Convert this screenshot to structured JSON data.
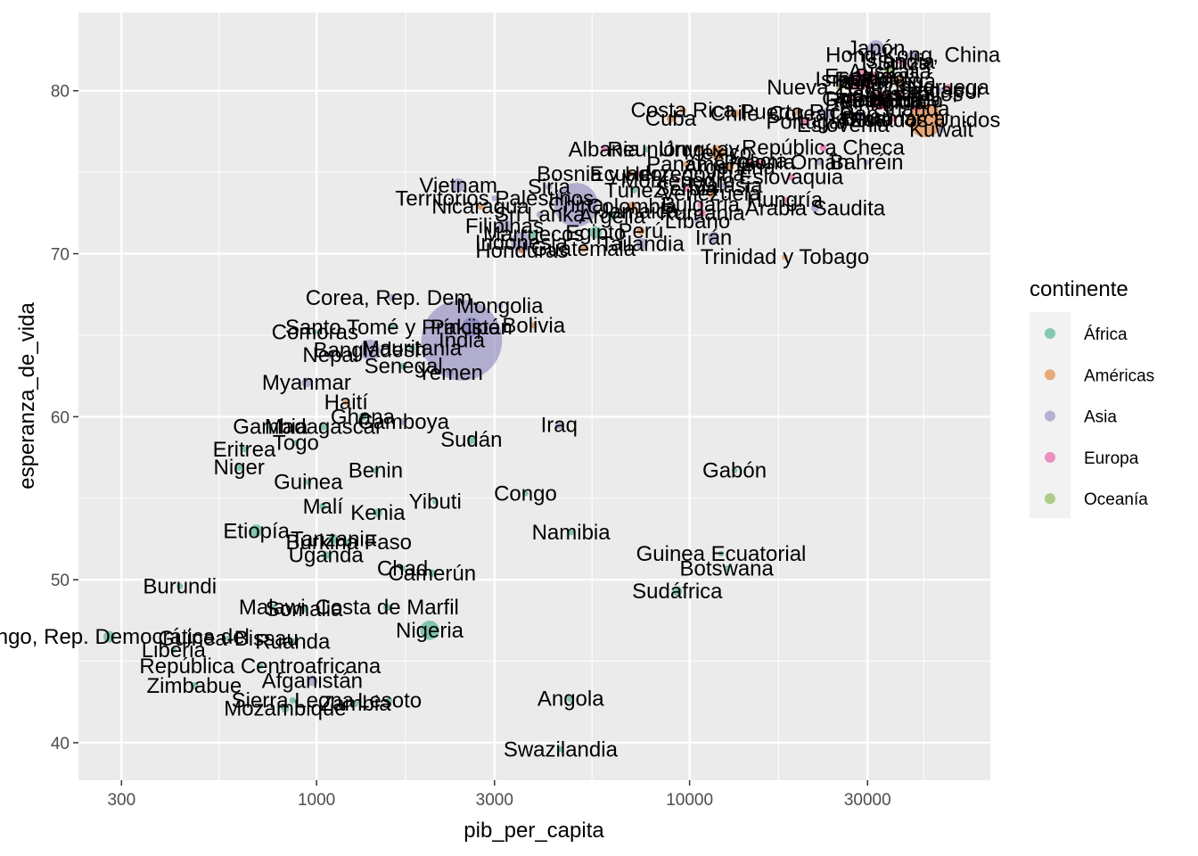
{
  "chart_data": {
    "type": "scatter",
    "xlabel": "pib_per_capita",
    "ylabel": "esperanza_de_vida",
    "x_scale": "log10",
    "xlim": [
      230,
      64000
    ],
    "ylim": [
      37.7,
      84.8
    ],
    "x_ticks": [
      300,
      1000,
      3000,
      10000,
      30000
    ],
    "x_tick_labels": [
      "300",
      "1000",
      "3000",
      "10000",
      "30000"
    ],
    "y_ticks": [
      40,
      50,
      60,
      70,
      80
    ],
    "y_tick_labels": [
      "40",
      "50",
      "60",
      "70",
      "80"
    ],
    "grid": true,
    "background": "#ebebeb",
    "legend": {
      "title": "continente",
      "placement": "right",
      "entries": [
        {
          "label": "África",
          "color": "#1b9e77"
        },
        {
          "label": "Américas",
          "color": "#d95f02"
        },
        {
          "label": "Asia",
          "color": "#7570b3"
        },
        {
          "label": "Europa",
          "color": "#e7298a"
        },
        {
          "label": "Oceanía",
          "color": "#66a61e"
        }
      ]
    },
    "points": [
      {
        "label": "Japón",
        "x": 31600,
        "y": 82.6,
        "continent": "Asia",
        "size": 1.6
      },
      {
        "label": "Hong Kong, China",
        "x": 39700,
        "y": 82.2,
        "continent": "Asia",
        "size": 1.0
      },
      {
        "label": "Islandia",
        "x": 36200,
        "y": 81.8,
        "continent": "Europa",
        "size": 0.3
      },
      {
        "label": "Suiza",
        "x": 37500,
        "y": 81.7,
        "continent": "Europa",
        "size": 0.6
      },
      {
        "label": "Australia",
        "x": 34400,
        "y": 81.2,
        "continent": "Oceanía",
        "size": 1.0
      },
      {
        "label": "España",
        "x": 28800,
        "y": 80.9,
        "continent": "Europa",
        "size": 1.4
      },
      {
        "label": "Suecia",
        "x": 33900,
        "y": 80.9,
        "continent": "Europa",
        "size": 0.8
      },
      {
        "label": "Israel",
        "x": 25500,
        "y": 80.7,
        "continent": "Asia",
        "size": 0.6
      },
      {
        "label": "Francia",
        "x": 30500,
        "y": 80.7,
        "continent": "Europa",
        "size": 1.6
      },
      {
        "label": "Canadá",
        "x": 36300,
        "y": 80.6,
        "continent": "Américas",
        "size": 1.2
      },
      {
        "label": "Italia",
        "x": 28600,
        "y": 80.5,
        "continent": "Europa",
        "size": 1.6
      },
      {
        "label": "Noruega",
        "x": 49400,
        "y": 80.2,
        "continent": "Europa",
        "size": 0.6
      },
      {
        "label": "Nueva Zelanda",
        "x": 25200,
        "y": 80.2,
        "continent": "Oceanía",
        "size": 0.5
      },
      {
        "label": "Austria",
        "x": 36100,
        "y": 79.8,
        "continent": "Europa",
        "size": 0.8
      },
      {
        "label": "Países Bajos",
        "x": 36800,
        "y": 79.8,
        "continent": "Europa",
        "size": 0.9
      },
      {
        "label": "Grecia",
        "x": 27500,
        "y": 79.5,
        "continent": "Europa",
        "size": 0.8
      },
      {
        "label": "Bélgica",
        "x": 33700,
        "y": 79.4,
        "continent": "Europa",
        "size": 0.8
      },
      {
        "label": "Reino Unido",
        "x": 33200,
        "y": 79.4,
        "continent": "Europa",
        "size": 1.6
      },
      {
        "label": "Alemania",
        "x": 32200,
        "y": 79.4,
        "continent": "Europa",
        "size": 1.8
      },
      {
        "label": "Finlandia",
        "x": 33200,
        "y": 79.3,
        "continent": "Europa",
        "size": 0.6
      },
      {
        "label": "Irlanda",
        "x": 40700,
        "y": 78.9,
        "continent": "Europa",
        "size": 0.5
      },
      {
        "label": "Singapur",
        "x": 47100,
        "y": 80.0,
        "continent": "Asia",
        "size": 0.5
      },
      {
        "label": "Costa Rica",
        "x": 9600,
        "y": 78.8,
        "continent": "Américas",
        "size": 0.5
      },
      {
        "label": "Puerto Rico",
        "x": 19300,
        "y": 78.7,
        "continent": "Américas",
        "size": 0.5
      },
      {
        "label": "Chile",
        "x": 13200,
        "y": 78.6,
        "continent": "Américas",
        "size": 0.9
      },
      {
        "label": "Cuba",
        "x": 8900,
        "y": 78.3,
        "continent": "Américas",
        "size": 0.8
      },
      {
        "label": "Eslovenia",
        "x": 25800,
        "y": 77.9,
        "continent": "Europa",
        "size": 0.4
      },
      {
        "label": "Dinamarca",
        "x": 35300,
        "y": 78.3,
        "continent": "Europa",
        "size": 0.6
      },
      {
        "label": "Portugal",
        "x": 20500,
        "y": 78.1,
        "continent": "Europa",
        "size": 0.8
      },
      {
        "label": "Estados Unidos",
        "x": 42900,
        "y": 78.2,
        "continent": "Américas",
        "size": 2.6
      },
      {
        "label": "Corea, Rep.",
        "x": 23300,
        "y": 78.6,
        "continent": "Asia",
        "size": 1.1
      },
      {
        "label": "Taiwán",
        "x": 28700,
        "y": 78.4,
        "continent": "Asia",
        "size": 0.8
      },
      {
        "label": "Kuwait",
        "x": 47300,
        "y": 77.6,
        "continent": "Asia",
        "size": 0.5
      },
      {
        "label": "Albania",
        "x": 5900,
        "y": 76.4,
        "continent": "Europa",
        "size": 0.5
      },
      {
        "label": "Reunión",
        "x": 7700,
        "y": 76.4,
        "continent": "África",
        "size": 0.4
      },
      {
        "label": "México",
        "x": 11900,
        "y": 76.2,
        "continent": "Américas",
        "size": 1.5
      },
      {
        "label": "República Checa",
        "x": 22800,
        "y": 76.5,
        "continent": "Europa",
        "size": 0.6
      },
      {
        "label": "Panamá",
        "x": 9800,
        "y": 75.5,
        "continent": "Américas",
        "size": 0.4
      },
      {
        "label": "Argentina",
        "x": 12800,
        "y": 75.3,
        "continent": "Américas",
        "size": 0.9
      },
      {
        "label": "Croacia",
        "x": 14600,
        "y": 75.7,
        "continent": "Europa",
        "size": 0.4
      },
      {
        "label": "Bahréin",
        "x": 29800,
        "y": 75.6,
        "continent": "Asia",
        "size": 0.4
      },
      {
        "label": "Uruguay",
        "x": 10600,
        "y": 76.4,
        "continent": "Américas",
        "size": 0.4
      },
      {
        "label": "Bosnia y Herzegovina",
        "x": 7400,
        "y": 74.9,
        "continent": "Europa",
        "size": 0.5
      },
      {
        "label": "Ecuador",
        "x": 6900,
        "y": 74.9,
        "continent": "Américas",
        "size": 0.6
      },
      {
        "label": "Siria",
        "x": 4200,
        "y": 74.1,
        "continent": "Asia",
        "size": 0.6
      },
      {
        "label": "Vietnam",
        "x": 2400,
        "y": 74.2,
        "continent": "Asia",
        "size": 1.4
      },
      {
        "label": "Montenegro",
        "x": 9300,
        "y": 74.5,
        "continent": "Europa",
        "size": 0.3
      },
      {
        "label": "Eslovaquia",
        "x": 18700,
        "y": 74.7,
        "continent": "Europa",
        "size": 0.5
      },
      {
        "label": "Malasia",
        "x": 12500,
        "y": 74.2,
        "continent": "Asia",
        "size": 0.8
      },
      {
        "label": "China",
        "x": 4960,
        "y": 73.0,
        "continent": "Asia",
        "size": 3.0
      },
      {
        "label": "Túnez",
        "x": 7100,
        "y": 73.9,
        "continent": "África",
        "size": 0.5
      },
      {
        "label": "Serbia",
        "x": 9800,
        "y": 74.0,
        "continent": "Europa",
        "size": 0.5
      },
      {
        "label": "Territorios Palestinos",
        "x": 3000,
        "y": 73.4,
        "continent": "Asia",
        "size": 0.4
      },
      {
        "label": "Nicaragua",
        "x": 2750,
        "y": 72.9,
        "continent": "Américas",
        "size": 0.5
      },
      {
        "label": "Omán",
        "x": 22300,
        "y": 75.6,
        "continent": "Asia",
        "size": 0.4
      },
      {
        "label": "Hungría",
        "x": 18000,
        "y": 73.3,
        "continent": "Europa",
        "size": 0.5
      },
      {
        "label": "Arabia Saudita",
        "x": 21700,
        "y": 72.8,
        "continent": "Asia",
        "size": 0.8
      },
      {
        "label": "Argelia",
        "x": 6200,
        "y": 72.3,
        "continent": "África",
        "size": 0.9
      },
      {
        "label": "Jamaica",
        "x": 7300,
        "y": 72.6,
        "continent": "Américas",
        "size": 0.4
      },
      {
        "label": "Líbano",
        "x": 10500,
        "y": 72.0,
        "continent": "Asia",
        "size": 0.4
      },
      {
        "label": "Bulgaria",
        "x": 10700,
        "y": 73.0,
        "continent": "Europa",
        "size": 0.5
      },
      {
        "label": "Polonia",
        "x": 15400,
        "y": 75.6,
        "continent": "Europa",
        "size": 0.9
      },
      {
        "label": "Venezuela",
        "x": 11400,
        "y": 73.7,
        "continent": "Américas",
        "size": 0.8
      },
      {
        "label": "Colombia",
        "x": 7000,
        "y": 72.9,
        "continent": "Américas",
        "size": 1.0
      },
      {
        "label": "Perú",
        "x": 7400,
        "y": 71.4,
        "continent": "Américas",
        "size": 0.8
      },
      {
        "label": "Egipto",
        "x": 5600,
        "y": 71.3,
        "continent": "África",
        "size": 1.3
      },
      {
        "label": "Sri Lanka",
        "x": 3970,
        "y": 72.4,
        "continent": "Asia",
        "size": 0.6
      },
      {
        "label": "Marruecos",
        "x": 3820,
        "y": 71.2,
        "continent": "África",
        "size": 0.9
      },
      {
        "label": "Filipinas",
        "x": 3190,
        "y": 71.7,
        "continent": "Asia",
        "size": 1.4
      },
      {
        "label": "Irán",
        "x": 11600,
        "y": 71.0,
        "continent": "Asia",
        "size": 1.2
      },
      {
        "label": "Indonesia",
        "x": 3540,
        "y": 70.7,
        "continent": "Asia",
        "size": 1.9
      },
      {
        "label": "Tailandia",
        "x": 7458,
        "y": 70.6,
        "continent": "Asia",
        "size": 1.2
      },
      {
        "label": "Rumania",
        "x": 10800,
        "y": 72.5,
        "continent": "Europa",
        "size": 0.7
      },
      {
        "label": "Honduras",
        "x": 3550,
        "y": 70.2,
        "continent": "Américas",
        "size": 0.5
      },
      {
        "label": "Guatemala",
        "x": 5190,
        "y": 70.3,
        "continent": "Américas",
        "size": 0.6
      },
      {
        "label": "Trinidad y Tobago",
        "x": 18000,
        "y": 69.8,
        "continent": "Américas",
        "size": 0.3
      },
      {
        "label": "Corea, Rep. Dem.",
        "x": 1590,
        "y": 67.3,
        "continent": "Asia",
        "size": 0.7
      },
      {
        "label": "Mongolia",
        "x": 3100,
        "y": 66.8,
        "continent": "Asia",
        "size": 0.4
      },
      {
        "label": "Bolivia",
        "x": 3820,
        "y": 65.6,
        "continent": "Américas",
        "size": 0.5
      },
      {
        "label": "Pakistán",
        "x": 2600,
        "y": 65.5,
        "continent": "Asia",
        "size": 1.8
      },
      {
        "label": "Santo Tomé y Príncipe",
        "x": 1600,
        "y": 65.5,
        "continent": "África",
        "size": 0.3
      },
      {
        "label": "Comoras",
        "x": 990,
        "y": 65.2,
        "continent": "África",
        "size": 0.3
      },
      {
        "label": "India",
        "x": 2450,
        "y": 64.7,
        "continent": "Asia",
        "size": 4.2
      },
      {
        "label": "Mauritania",
        "x": 1800,
        "y": 64.2,
        "continent": "África",
        "size": 0.4
      },
      {
        "label": "Bangladesh",
        "x": 1390,
        "y": 64.1,
        "continent": "Asia",
        "size": 1.9
      },
      {
        "label": "Nepal",
        "x": 1090,
        "y": 63.8,
        "continent": "Asia",
        "size": 0.8
      },
      {
        "label": "Senegal",
        "x": 1710,
        "y": 63.1,
        "continent": "África",
        "size": 0.6
      },
      {
        "label": "Yemen",
        "x": 2280,
        "y": 62.7,
        "continent": "Asia",
        "size": 0.6
      },
      {
        "label": "Myanmar",
        "x": 940,
        "y": 62.1,
        "continent": "Asia",
        "size": 1.0
      },
      {
        "label": "Haití",
        "x": 1200,
        "y": 60.9,
        "continent": "Américas",
        "size": 0.5
      },
      {
        "label": "Ghana",
        "x": 1330,
        "y": 60.0,
        "continent": "África",
        "size": 0.8
      },
      {
        "label": "Camboya",
        "x": 1710,
        "y": 59.7,
        "continent": "Asia",
        "size": 0.6
      },
      {
        "label": "Madagascar",
        "x": 1044,
        "y": 59.4,
        "continent": "África",
        "size": 0.7
      },
      {
        "label": "Gambia",
        "x": 752,
        "y": 59.4,
        "continent": "África",
        "size": 0.3
      },
      {
        "label": "Iraq",
        "x": 4470,
        "y": 59.5,
        "continent": "Asia",
        "size": 0.8
      },
      {
        "label": "Sudán",
        "x": 2600,
        "y": 58.6,
        "continent": "África",
        "size": 0.9
      },
      {
        "label": "Togo",
        "x": 880,
        "y": 58.4,
        "continent": "África",
        "size": 0.4
      },
      {
        "label": "Eritrea",
        "x": 640,
        "y": 58.0,
        "continent": "África",
        "size": 0.4
      },
      {
        "label": "Niger",
        "x": 620,
        "y": 56.9,
        "continent": "África",
        "size": 0.6
      },
      {
        "label": "Gabón",
        "x": 13200,
        "y": 56.7,
        "continent": "África",
        "size": 0.3
      },
      {
        "label": "Benin",
        "x": 1440,
        "y": 56.7,
        "continent": "África",
        "size": 0.5
      },
      {
        "label": "Guinea",
        "x": 950,
        "y": 56.0,
        "continent": "África",
        "size": 0.5
      },
      {
        "label": "Yibuti",
        "x": 2080,
        "y": 54.8,
        "continent": "África",
        "size": 0.3
      },
      {
        "label": "Congo",
        "x": 3630,
        "y": 55.3,
        "continent": "África",
        "size": 0.4
      },
      {
        "label": "Malí",
        "x": 1040,
        "y": 54.5,
        "continent": "África",
        "size": 0.6
      },
      {
        "label": "Kenia",
        "x": 1460,
        "y": 54.1,
        "continent": "África",
        "size": 0.9
      },
      {
        "label": "Etiopía",
        "x": 690,
        "y": 53.0,
        "continent": "África",
        "size": 1.3
      },
      {
        "label": "Namibia",
        "x": 4810,
        "y": 52.9,
        "continent": "África",
        "size": 0.3
      },
      {
        "label": "Tanzania",
        "x": 1110,
        "y": 52.5,
        "continent": "África",
        "size": 1.0
      },
      {
        "label": "Burkina Faso",
        "x": 1220,
        "y": 52.3,
        "continent": "África",
        "size": 0.6
      },
      {
        "label": "Uganda",
        "x": 1060,
        "y": 51.5,
        "continent": "África",
        "size": 0.8
      },
      {
        "label": "Guinea Ecuatorial",
        "x": 12150,
        "y": 51.6,
        "continent": "África",
        "size": 0.3
      },
      {
        "label": "Chad",
        "x": 1700,
        "y": 50.7,
        "continent": "África",
        "size": 0.5
      },
      {
        "label": "Botswana",
        "x": 12570,
        "y": 50.7,
        "continent": "África",
        "size": 0.3
      },
      {
        "label": "Camerún",
        "x": 2040,
        "y": 50.4,
        "continent": "África",
        "size": 0.7
      },
      {
        "label": "Sudáfrica",
        "x": 9270,
        "y": 49.3,
        "continent": "África",
        "size": 1.0
      },
      {
        "label": "Burundi",
        "x": 430,
        "y": 49.6,
        "continent": "África",
        "size": 0.5
      },
      {
        "label": "Malawi",
        "x": 760,
        "y": 48.3,
        "continent": "África",
        "size": 0.6
      },
      {
        "label": "Costa de Marfil",
        "x": 1545,
        "y": 48.3,
        "continent": "África",
        "size": 0.7
      },
      {
        "label": "Somalia",
        "x": 926,
        "y": 48.2,
        "continent": "África",
        "size": 0.5
      },
      {
        "label": "Nigeria",
        "x": 2010,
        "y": 46.9,
        "continent": "África",
        "size": 1.8
      },
      {
        "label": "Congo, Rep. Democrática del",
        "x": 278,
        "y": 46.5,
        "continent": "África",
        "size": 1.2
      },
      {
        "label": "Guinea-Bissau",
        "x": 580,
        "y": 46.4,
        "continent": "África",
        "size": 0.3
      },
      {
        "label": "Ruanda",
        "x": 863,
        "y": 46.2,
        "continent": "África",
        "size": 0.6
      },
      {
        "label": "Liberia",
        "x": 414,
        "y": 45.7,
        "continent": "África",
        "size": 0.4
      },
      {
        "label": "República Centroafricana",
        "x": 706,
        "y": 44.7,
        "continent": "África",
        "size": 0.4
      },
      {
        "label": "Afganistán",
        "x": 974,
        "y": 43.8,
        "continent": "Asia",
        "size": 1.1
      },
      {
        "label": "Zimbabue",
        "x": 470,
        "y": 43.5,
        "continent": "África",
        "size": 0.6
      },
      {
        "label": "Angola",
        "x": 4800,
        "y": 42.7,
        "continent": "África",
        "size": 0.7
      },
      {
        "label": "Sierra Leona",
        "x": 863,
        "y": 42.6,
        "continent": "África",
        "size": 0.5
      },
      {
        "label": "Lesoto",
        "x": 1570,
        "y": 42.6,
        "continent": "África",
        "size": 0.3
      },
      {
        "label": "Zambia",
        "x": 1270,
        "y": 42.4,
        "continent": "África",
        "size": 0.6
      },
      {
        "label": "Mozambique",
        "x": 824,
        "y": 42.1,
        "continent": "África",
        "size": 0.8
      },
      {
        "label": "Swazilandia",
        "x": 4510,
        "y": 39.6,
        "continent": "África",
        "size": 0.3
      }
    ]
  }
}
